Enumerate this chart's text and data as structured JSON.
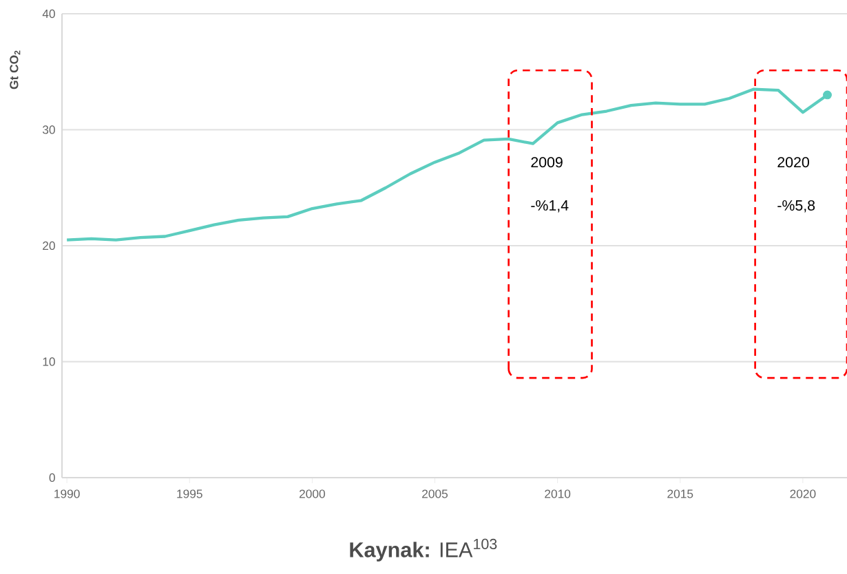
{
  "chart_data": {
    "type": "line",
    "ylabel": "Gt CO$_{2}$",
    "x": [
      1990,
      1991,
      1992,
      1993,
      1994,
      1995,
      1996,
      1997,
      1998,
      1999,
      2000,
      2001,
      2002,
      2003,
      2004,
      2005,
      2006,
      2007,
      2008,
      2009,
      2010,
      2011,
      2012,
      2013,
      2014,
      2015,
      2016,
      2017,
      2018,
      2019,
      2020,
      2021
    ],
    "series": [
      {
        "color": "#5ccdbf",
        "values": [
          20.5,
          20.6,
          20.5,
          20.7,
          20.8,
          21.3,
          21.8,
          22.2,
          22.4,
          22.5,
          23.2,
          23.6,
          23.9,
          25.0,
          26.2,
          27.2,
          28.0,
          29.1,
          29.2,
          28.8,
          30.6,
          31.3,
          31.6,
          32.1,
          32.3,
          32.2,
          32.2,
          32.7,
          33.5,
          33.4,
          31.5,
          33.0
        ]
      },
      {
        "type": "scatter",
        "marker": "circle",
        "color": "#5ccdbf",
        "x": [
          2021
        ],
        "values": [
          33.0
        ]
      }
    ],
    "xlim": [
      1989.8,
      2021.8
    ],
    "xticks": [
      1990,
      1995,
      2000,
      2005,
      2010,
      2015,
      2020
    ],
    "ylim": [
      0,
      40
    ],
    "yticks": [
      0,
      10,
      20,
      30,
      40
    ],
    "grid": "y",
    "annotations": [
      "2009",
      "-%1,4",
      "2020",
      "-%5,8",
      "**Kaynak:** IEA$^{103}$"
    ]
  }
}
